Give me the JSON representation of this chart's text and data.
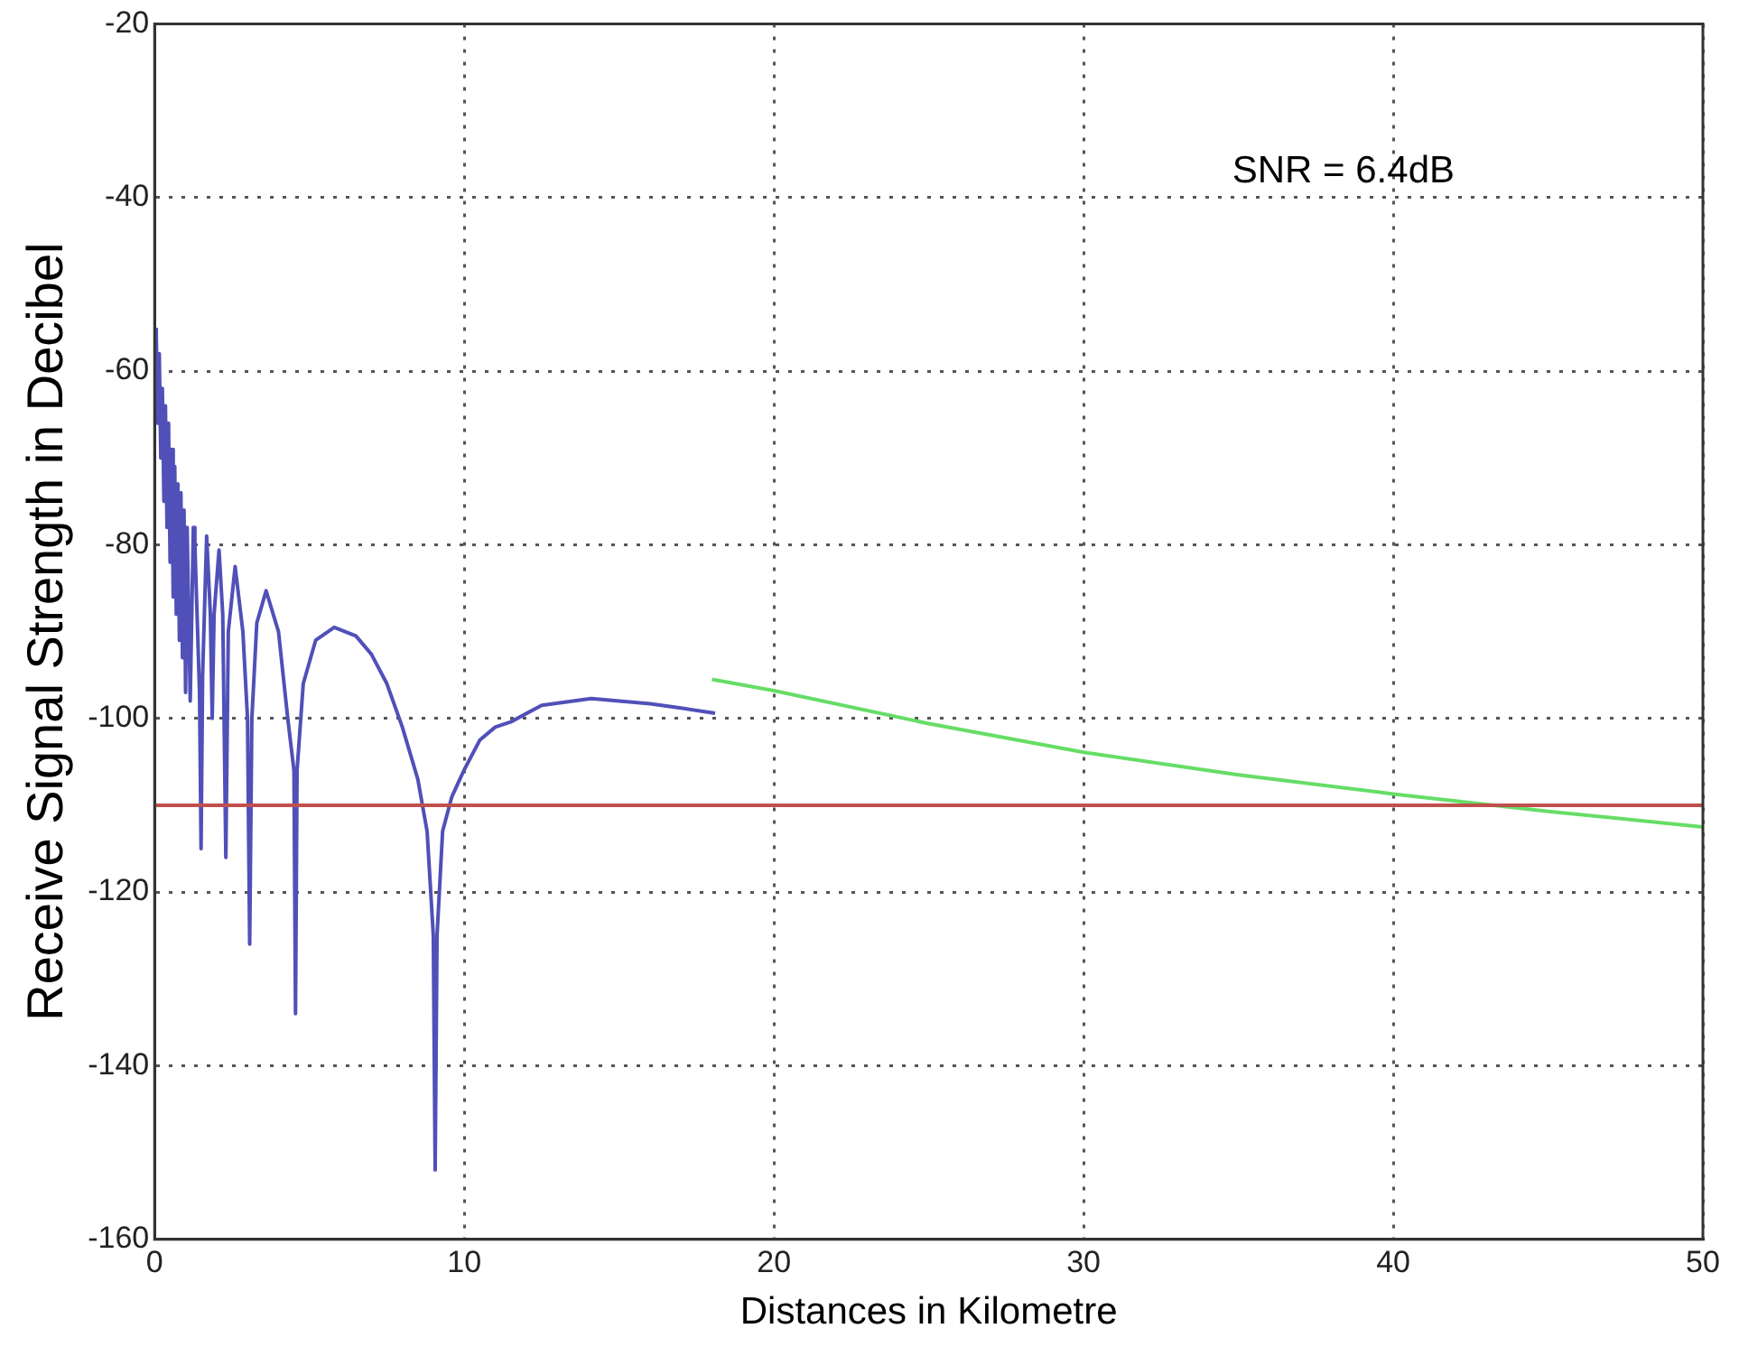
{
  "chart_data": {
    "type": "line",
    "xlabel": "Distances in Kilometre",
    "ylabel": "Receive Signal Strength in Decibel",
    "annotations": [
      "SNR = 6.4dB"
    ],
    "xlim": [
      0,
      50
    ],
    "xticks": [
      0,
      10,
      20,
      30,
      40,
      50
    ],
    "ylim": [
      -160,
      -20
    ],
    "yticks": [
      -160,
      -140,
      -120,
      -100,
      -80,
      -60,
      -40,
      -20
    ],
    "grid": true,
    "legend": false,
    "marker": "none",
    "line_style": "solid",
    "ref_lines": [
      {
        "axis": "y",
        "value": -110,
        "color": "#c0504d"
      }
    ],
    "series": [
      {
        "color": "#5050b8",
        "x": [
          0.05,
          0.1,
          0.15,
          0.2,
          0.25,
          0.3,
          0.35,
          0.4,
          0.45,
          0.5,
          0.55,
          0.6,
          0.65,
          0.7,
          0.75,
          0.8,
          0.85,
          0.9,
          0.95,
          1.0,
          1.05,
          1.15,
          1.25,
          1.3,
          1.45,
          1.5,
          1.55,
          1.68,
          1.8,
          1.86,
          1.92,
          2.08,
          2.2,
          2.3,
          2.38,
          2.6,
          2.85,
          3.0,
          3.07,
          3.14,
          3.3,
          3.6,
          4.0,
          4.3,
          4.5,
          4.55,
          4.6,
          4.8,
          5.2,
          5.8,
          6.5,
          7,
          7.5,
          8,
          8.5,
          8.8,
          9.0,
          9.06,
          9.12,
          9.3,
          9.6,
          10,
          10.5,
          11,
          11.5,
          12.5,
          14.1,
          16,
          17,
          18.1
        ],
        "values": [
          -55,
          -66,
          -58,
          -70,
          -62,
          -75,
          -64,
          -78,
          -66,
          -82,
          -69,
          -86,
          -71,
          -88,
          -73,
          -91,
          -74,
          -93,
          -76,
          -97,
          -78,
          -98,
          -78,
          -80,
          -97,
          -115,
          -95,
          -79,
          -88,
          -100,
          -88,
          -80.6,
          -88,
          -116,
          -90,
          -82.5,
          -90,
          -100,
          -126,
          -100,
          -89,
          -85.3,
          -90,
          -100,
          -106,
          -134,
          -106,
          -96,
          -91,
          -89.5,
          -90.5,
          -92.6,
          -96,
          -101,
          -107,
          -113,
          -125,
          -152,
          -125,
          -113,
          -109,
          -105.9,
          -102.5,
          -101,
          -100.4,
          -98.5,
          -97.7,
          -98.3,
          -98.8,
          -99.4
        ]
      },
      {
        "color": "#66dd66",
        "x": [
          18,
          20,
          25,
          30,
          35,
          40,
          45,
          50
        ],
        "values": [
          -95.5,
          -96.8,
          -100.6,
          -103.9,
          -106.5,
          -108.7,
          -110.7,
          -112.5
        ]
      }
    ]
  }
}
